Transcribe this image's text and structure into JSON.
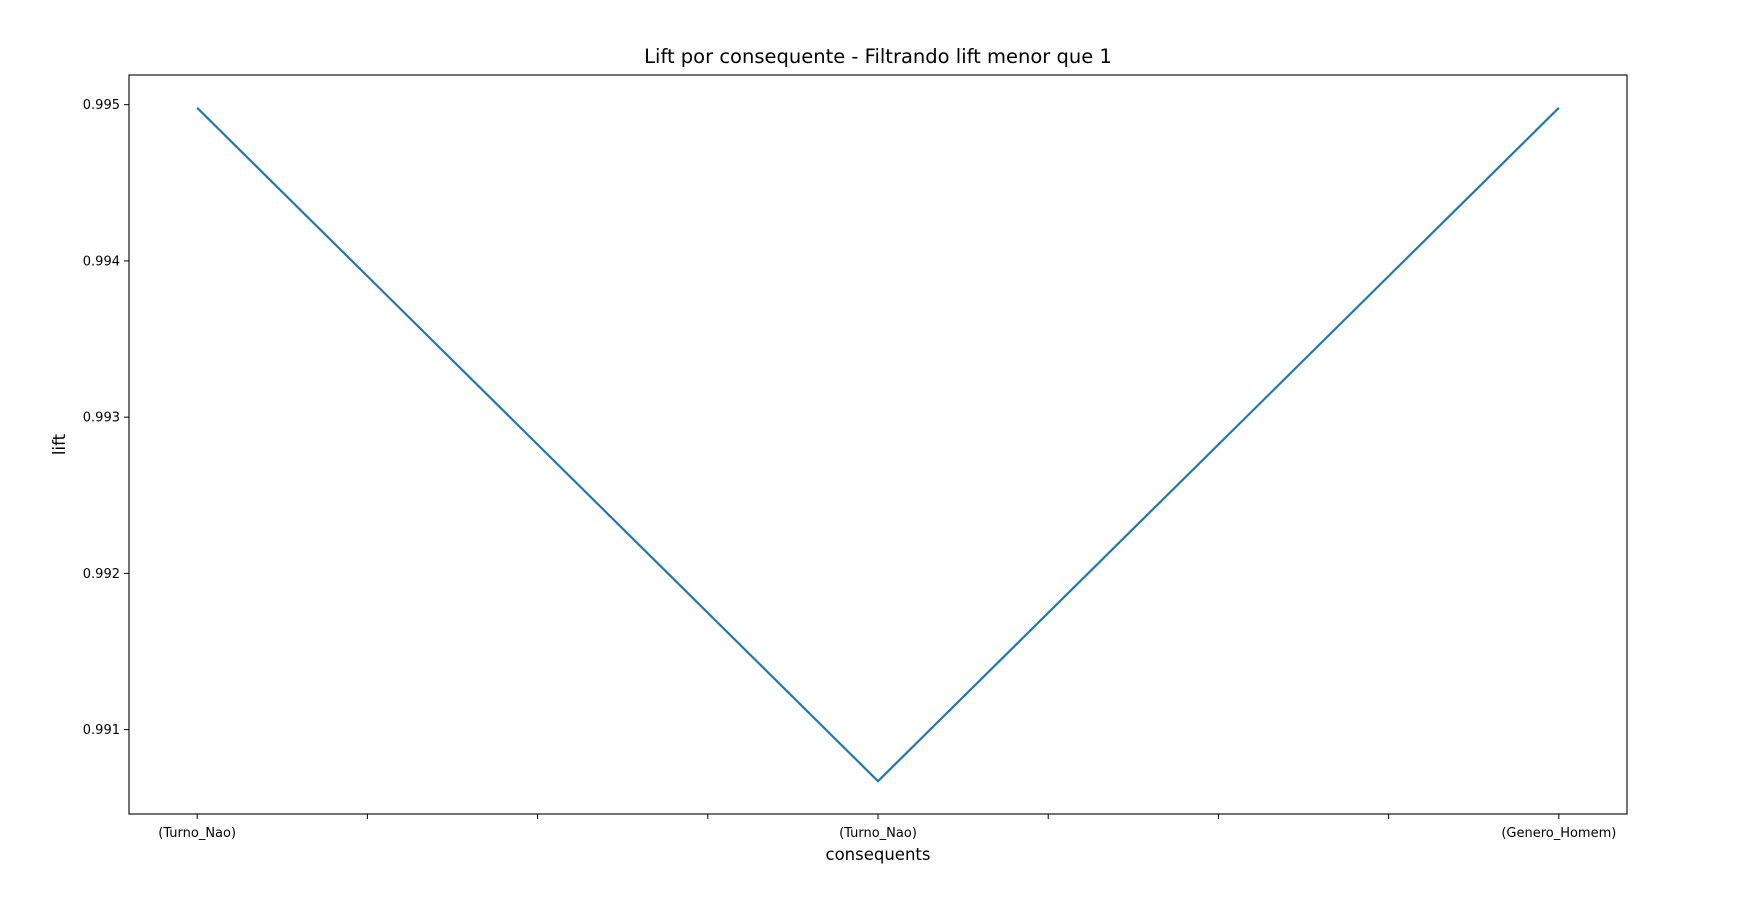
{
  "chart_data": {
    "type": "line",
    "title": "Lift por consequente - Filtrando lift menor que 1",
    "xlabel": "consequents",
    "ylabel": "lift",
    "categories": [
      "(Turno_Nao)",
      "(Turno_Nao)",
      "(Genero_Homem)"
    ],
    "series": [
      {
        "values": [
          0.99498,
          0.99067,
          0.99498
        ],
        "color": "#1f77b4"
      }
    ],
    "ylim": [
      0.99046,
      0.99519
    ],
    "yticks": [
      0.991,
      0.992,
      0.993,
      0.994,
      0.995
    ],
    "ytick_labels": [
      "0.991",
      "0.992",
      "0.993",
      "0.994",
      "0.995"
    ],
    "x_minor_ticks_between_labels": 3,
    "grid": false,
    "legend": false
  }
}
